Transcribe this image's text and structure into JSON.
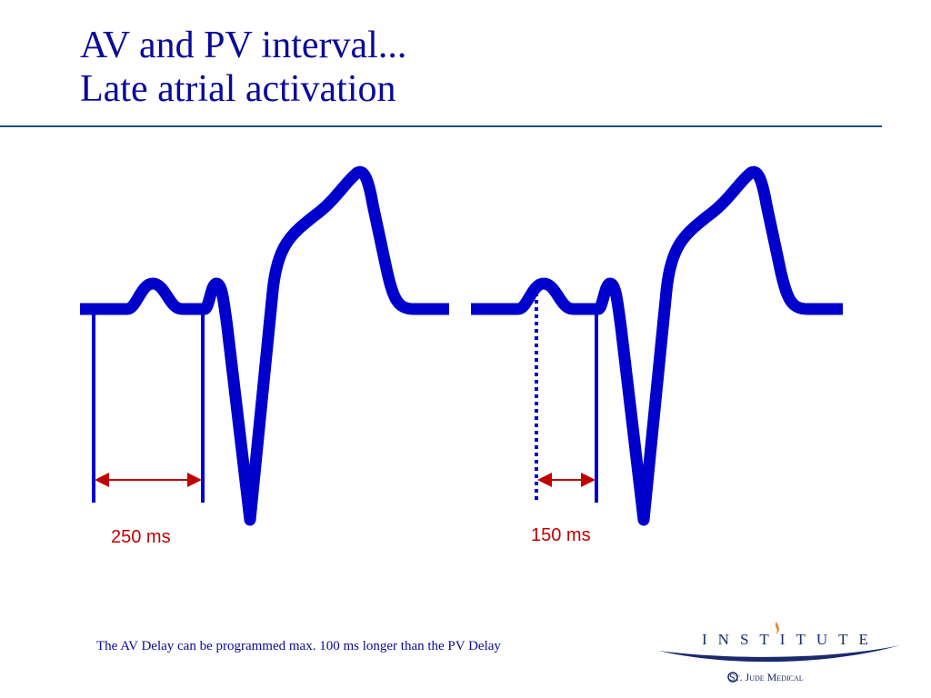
{
  "title": {
    "line1": "AV and PV interval...",
    "line2": "Late atrial activation"
  },
  "diagram": {
    "left_interval_label": "250 ms",
    "right_interval_label": "150 ms",
    "colors": {
      "waveform": "#0000cc",
      "interval_arrow": "#c00000"
    }
  },
  "footnote": "The AV Delay can be programmed max. 100 ms longer than the PV Delay",
  "logo": {
    "name": "INSTITUTE",
    "company": "St. Jude Medical"
  }
}
